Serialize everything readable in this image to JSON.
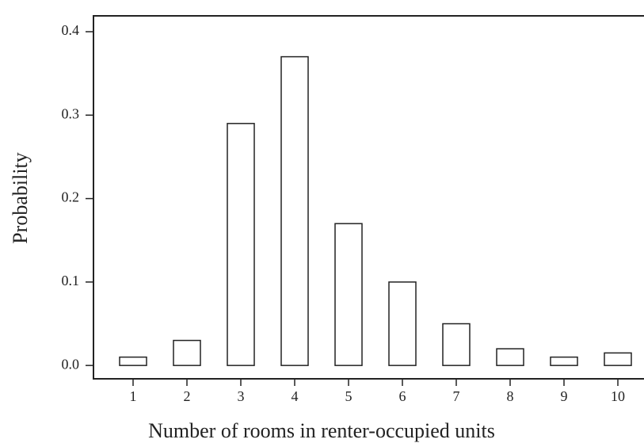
{
  "chart_data": {
    "type": "bar",
    "xlabel": "Number of rooms in renter-occupied units",
    "ylabel": "Probability",
    "categories": [
      "1",
      "2",
      "3",
      "4",
      "5",
      "6",
      "7",
      "8",
      "9",
      "10"
    ],
    "values": [
      0.01,
      0.03,
      0.29,
      0.37,
      0.17,
      0.1,
      0.05,
      0.02,
      0.01,
      0.015
    ],
    "color": "#ffffff",
    "ylim": [
      -0.016,
      0.419
    ],
    "yticks": [
      {
        "value": 0,
        "label": "0.0"
      },
      0.1,
      0.2,
      0.3,
      0.4
    ],
    "grid": false
  }
}
